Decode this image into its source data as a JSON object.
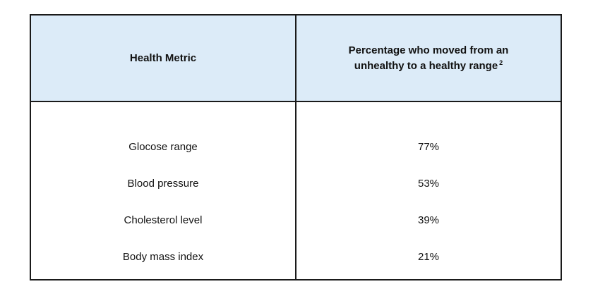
{
  "table": {
    "headers": {
      "metric": "Health Metric",
      "percentage": "Percentage who moved from an unhealthy to a healthy range",
      "footnote": "2"
    },
    "rows": [
      {
        "metric": "Glocose range",
        "value": "77%"
      },
      {
        "metric": "Blood pressure",
        "value": "53%"
      },
      {
        "metric": "Cholesterol level",
        "value": "39%"
      },
      {
        "metric": "Body mass index",
        "value": "21%"
      }
    ],
    "colors": {
      "header_background": "#dcebf8",
      "border": "#1a1a1a"
    }
  }
}
